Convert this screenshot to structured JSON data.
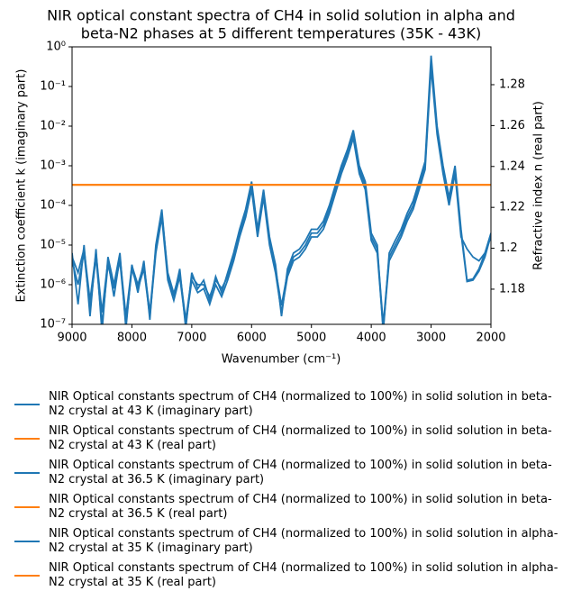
{
  "chart_data": {
    "type": "line",
    "title": [
      "NIR optical constant spectra of CH4 in solid solution in alpha and",
      "beta-N2 phases at 5 different temperatures (35K - 43K)"
    ],
    "x_label": "Wavenumber (cm⁻¹)",
    "y_label": "Extinction coefficient k (imaginary part)",
    "y2_label": "Refractive index n (real part)",
    "xlim": [
      9000,
      2000
    ],
    "xticks": [
      9000,
      8000,
      7000,
      6000,
      5000,
      4000,
      3000,
      2000
    ],
    "ylim": [
      1e-07,
      1
    ],
    "y_scale": "log",
    "yticks": [
      {
        "value": 1e-07,
        "label": "10⁻⁷"
      },
      {
        "value": 1e-06,
        "label": "10⁻⁶"
      },
      {
        "value": 1e-05,
        "label": "10⁻⁵"
      },
      {
        "value": 0.0001,
        "label": "10⁻⁴"
      },
      {
        "value": 0.001,
        "label": "10⁻³"
      },
      {
        "value": 0.01,
        "label": "10⁻²"
      },
      {
        "value": 0.1,
        "label": "10⁻¹"
      },
      {
        "value": 1,
        "label": "10⁰"
      }
    ],
    "y2lim": [
      1.1628,
      1.2985
    ],
    "y2ticks": [
      1.18,
      1.2,
      1.22,
      1.24,
      1.26,
      1.28
    ],
    "x": [
      9000,
      8900,
      8800,
      8700,
      8600,
      8500,
      8400,
      8300,
      8200,
      8100,
      8000,
      7900,
      7800,
      7700,
      7600,
      7500,
      7400,
      7300,
      7200,
      7100,
      7000,
      6900,
      6800,
      6700,
      6600,
      6500,
      6400,
      6300,
      6200,
      6100,
      6000,
      5900,
      5800,
      5700,
      5600,
      5500,
      5400,
      5300,
      5200,
      5100,
      5000,
      4900,
      4800,
      4700,
      4600,
      4500,
      4400,
      4300,
      4200,
      4100,
      4000,
      3900,
      3800,
      3700,
      3600,
      3500,
      3400,
      3300,
      3200,
      3100,
      3000,
      2900,
      2800,
      2700,
      2600,
      2500,
      2400,
      2300,
      2200,
      2100,
      2000
    ],
    "series": [
      {
        "name": "NIR Optical constants spectrum of CH4 (normalized to 100%) in solid solution in beta-N2 crystal at 43 K (imaginary part)",
        "color": "#1f77b4",
        "values": [
          6.3e-06,
          3.2e-07,
          1e-05,
          1.6e-07,
          7.9e-06,
          6.3e-08,
          5e-06,
          1e-06,
          6.3e-06,
          7.9e-08,
          3.2e-06,
          6.3e-07,
          4e-06,
          1.3e-07,
          1e-05,
          7.9e-05,
          1.6e-06,
          5e-07,
          2.5e-06,
          7.9e-08,
          2e-06,
          7.9e-07,
          1.3e-06,
          4e-07,
          1.6e-06,
          6.3e-07,
          2e-06,
          6.3e-06,
          2.5e-05,
          7.9e-05,
          0.0004,
          2.5e-05,
          0.00025,
          1.6e-05,
          3.2e-06,
          1.6e-07,
          2.5e-06,
          6.3e-06,
          7.9e-06,
          1.3e-05,
          2.5e-05,
          2.5e-05,
          4e-05,
          0.0001,
          0.00032,
          0.001,
          0.0025,
          0.0079,
          0.001,
          0.0004,
          2e-05,
          1e-05,
          6.3e-08,
          6.3e-06,
          1.3e-05,
          2.5e-05,
          6.3e-05,
          0.00013,
          0.0004,
          0.0013,
          0.6,
          0.01,
          0.001,
          0.00016,
          0.001,
          2.5e-05,
          1.3e-06,
          1.4e-06,
          2.5e-06,
          6.3e-06,
          2e-05
        ]
      },
      {
        "name": "NIR Optical constants spectrum of CH4 (normalized to 100%) in solid solution in beta-N2 crystal at 43 K (real part)",
        "color": "#ff7f0e",
        "axis": "y2",
        "values": [
          1.231,
          1.231,
          1.231,
          1.231,
          1.231,
          1.231,
          1.231,
          1.231,
          1.231,
          1.231,
          1.231,
          1.231,
          1.231,
          1.231,
          1.231,
          1.231,
          1.231,
          1.231,
          1.231,
          1.231,
          1.231,
          1.231,
          1.231,
          1.231,
          1.231,
          1.231,
          1.231,
          1.231,
          1.231,
          1.231,
          1.231,
          1.231,
          1.231,
          1.231,
          1.231,
          1.231,
          1.231,
          1.231,
          1.231,
          1.231,
          1.231,
          1.231,
          1.231,
          1.231,
          1.231,
          1.231,
          1.231,
          1.231,
          1.231,
          1.231,
          1.231,
          1.231,
          1.231,
          1.231,
          1.231,
          1.231,
          1.231,
          1.231,
          1.231,
          1.231,
          1.231,
          1.231,
          1.231,
          1.231,
          1.231,
          1.231,
          1.231,
          1.231,
          1.231,
          1.231,
          1.231
        ]
      },
      {
        "name": "NIR Optical constants spectrum of CH4 (normalized to 100%) in solid solution in beta-N2 crystal at 36.5 K (imaginary part)",
        "color": "#1f77b4",
        "values": [
          5e-06,
          2e-06,
          8e-06,
          4e-07,
          6.3e-06,
          2e-07,
          4e-06,
          5e-07,
          5e-06,
          1.6e-07,
          3e-06,
          1e-06,
          3.2e-06,
          2e-07,
          8e-06,
          6.3e-05,
          2e-06,
          6e-07,
          2e-06,
          1.3e-07,
          1.6e-06,
          1e-06,
          1e-06,
          5e-07,
          1.3e-06,
          8e-07,
          1.6e-06,
          5e-06,
          2e-05,
          6.3e-05,
          0.00032,
          2e-05,
          0.0002,
          1.3e-05,
          2.5e-06,
          3e-07,
          2e-06,
          5e-06,
          6.3e-06,
          1e-05,
          2e-05,
          2e-05,
          3.2e-05,
          8e-05,
          0.00025,
          0.0008,
          0.002,
          0.0063,
          0.0008,
          0.00032,
          1.6e-05,
          8e-06,
          1e-07,
          5e-06,
          1e-05,
          2e-05,
          5e-05,
          0.0001,
          0.00032,
          0.001,
          0.4,
          0.008,
          0.0008,
          0.00013,
          0.0008,
          2e-05,
          1.2e-06,
          1.3e-06,
          2.2e-06,
          5e-06,
          1.8e-05
        ]
      },
      {
        "name": "NIR Optical constants spectrum of CH4 (normalized to 100%) in solid solution in beta-N2 crystal at 36.5 K (real part)",
        "color": "#ff7f0e",
        "axis": "y2",
        "values": [
          1.231,
          1.231,
          1.231,
          1.231,
          1.231,
          1.231,
          1.231,
          1.231,
          1.231,
          1.231,
          1.231,
          1.231,
          1.231,
          1.231,
          1.231,
          1.231,
          1.231,
          1.231,
          1.231,
          1.231,
          1.231,
          1.231,
          1.231,
          1.231,
          1.231,
          1.231,
          1.231,
          1.231,
          1.231,
          1.231,
          1.231,
          1.231,
          1.231,
          1.231,
          1.231,
          1.231,
          1.231,
          1.231,
          1.231,
          1.231,
          1.231,
          1.231,
          1.231,
          1.231,
          1.231,
          1.231,
          1.231,
          1.231,
          1.231,
          1.231,
          1.231,
          1.231,
          1.231,
          1.231,
          1.231,
          1.231,
          1.231,
          1.231,
          1.231,
          1.231,
          1.231,
          1.231,
          1.231,
          1.231,
          1.231,
          1.231,
          1.231,
          1.231,
          1.231,
          1.231,
          1.231
        ]
      },
      {
        "name": "NIR Optical constants spectrum of CH4 (normalized to 100%) in solid solution in alpha-N2 crystal at 35 K (imaginary part)",
        "color": "#1f77b4",
        "values": [
          4e-06,
          1e-06,
          6.3e-06,
          2.5e-07,
          5e-06,
          1e-07,
          3.2e-06,
          8e-07,
          4e-06,
          1e-07,
          2.5e-06,
          8e-07,
          2.5e-06,
          1.6e-07,
          6.3e-06,
          5e-05,
          1.3e-06,
          4e-07,
          1.6e-06,
          1e-07,
          1.3e-06,
          6.3e-07,
          8e-07,
          3.2e-07,
          1e-06,
          5e-07,
          1.3e-06,
          4e-06,
          1.6e-05,
          5e-05,
          0.00025,
          1.6e-05,
          0.00016,
          1e-05,
          2e-06,
          2e-07,
          1.6e-06,
          4e-06,
          5e-06,
          8e-06,
          1.6e-05,
          1.6e-05,
          2.5e-05,
          6.3e-05,
          0.0002,
          0.00063,
          0.0016,
          0.005,
          0.00063,
          0.00025,
          1.3e-05,
          6.3e-06,
          8e-08,
          4e-06,
          8e-06,
          1.6e-05,
          4e-05,
          8e-05,
          0.00025,
          0.0008,
          0.3,
          0.0063,
          0.00063,
          0.0001,
          0.00063,
          1.6e-05,
          8e-06,
          5e-06,
          4e-06,
          6.3e-06,
          1.6e-05
        ]
      },
      {
        "name": "NIR Optical constants spectrum of CH4 (normalized to 100%) in solid solution in alpha-N2 crystal at 35 K (real part)",
        "color": "#ff7f0e",
        "axis": "y2",
        "values": [
          1.231,
          1.231,
          1.231,
          1.231,
          1.231,
          1.231,
          1.231,
          1.231,
          1.231,
          1.231,
          1.231,
          1.231,
          1.231,
          1.231,
          1.231,
          1.231,
          1.231,
          1.231,
          1.231,
          1.231,
          1.231,
          1.231,
          1.231,
          1.231,
          1.231,
          1.231,
          1.231,
          1.231,
          1.231,
          1.231,
          1.231,
          1.231,
          1.231,
          1.231,
          1.231,
          1.231,
          1.231,
          1.231,
          1.231,
          1.231,
          1.231,
          1.231,
          1.231,
          1.231,
          1.231,
          1.231,
          1.231,
          1.231,
          1.231,
          1.231,
          1.231,
          1.231,
          1.231,
          1.231,
          1.231,
          1.231,
          1.231,
          1.231,
          1.231,
          1.231,
          1.231,
          1.231,
          1.231,
          1.231,
          1.231,
          1.231,
          1.231,
          1.231,
          1.231,
          1.231,
          1.231
        ]
      }
    ]
  }
}
